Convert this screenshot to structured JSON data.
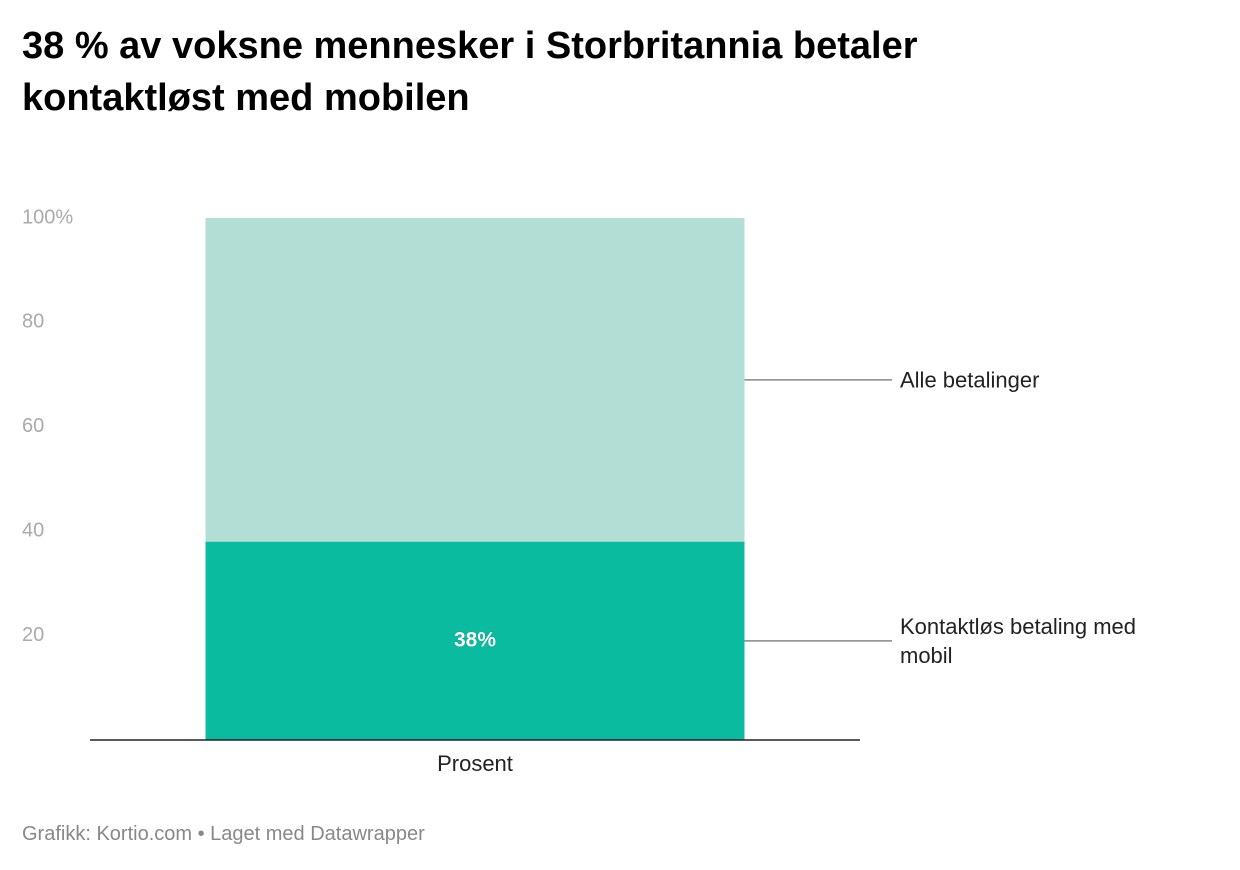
{
  "chart_data": {
    "type": "stacked-bar",
    "title": "38 % av voksne mennesker i Storbritannia betaler kontaktløst med mobilen",
    "source": "Grafikk: Kortio.com • Laget med Datawrapper",
    "categories": [
      "Prosent"
    ],
    "series": [
      {
        "name": "Kontaktløs betaling med mobil",
        "color": "#0bbb9f",
        "values": [
          38
        ],
        "value_labels": [
          "38%"
        ]
      },
      {
        "name": "Alle betalinger",
        "color": "#b2ded5",
        "values": [
          62
        ]
      }
    ],
    "ylim": [
      0,
      100
    ],
    "yticks": [
      20,
      40,
      60,
      80,
      {
        "value": 100,
        "label": "100%"
      }
    ],
    "grid": false
  }
}
